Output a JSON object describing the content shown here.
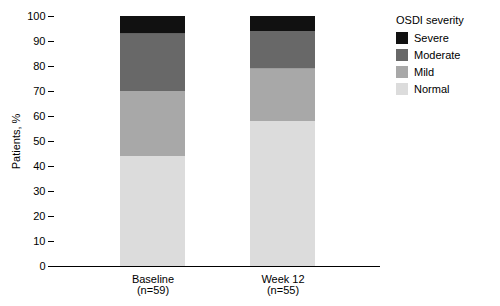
{
  "chart_data": {
    "type": "bar",
    "stacked": true,
    "categories": [
      "Baseline\n(n=59)",
      "Week 12\n(n=55)"
    ],
    "series": [
      {
        "name": "Normal",
        "color": "#dcdcdc",
        "values": [
          44,
          58
        ]
      },
      {
        "name": "Mild",
        "color": "#a8a8a8",
        "values": [
          26,
          21
        ]
      },
      {
        "name": "Moderate",
        "color": "#686868",
        "values": [
          23,
          15
        ]
      },
      {
        "name": "Severe",
        "color": "#111111",
        "values": [
          7,
          6
        ]
      }
    ],
    "ylabel": "Patients, %",
    "ylim": [
      0,
      100
    ],
    "yticks": [
      0,
      10,
      20,
      30,
      40,
      50,
      60,
      70,
      80,
      90,
      100
    ],
    "grid": false,
    "legend": "right",
    "legend_title": "OSDI severity"
  }
}
